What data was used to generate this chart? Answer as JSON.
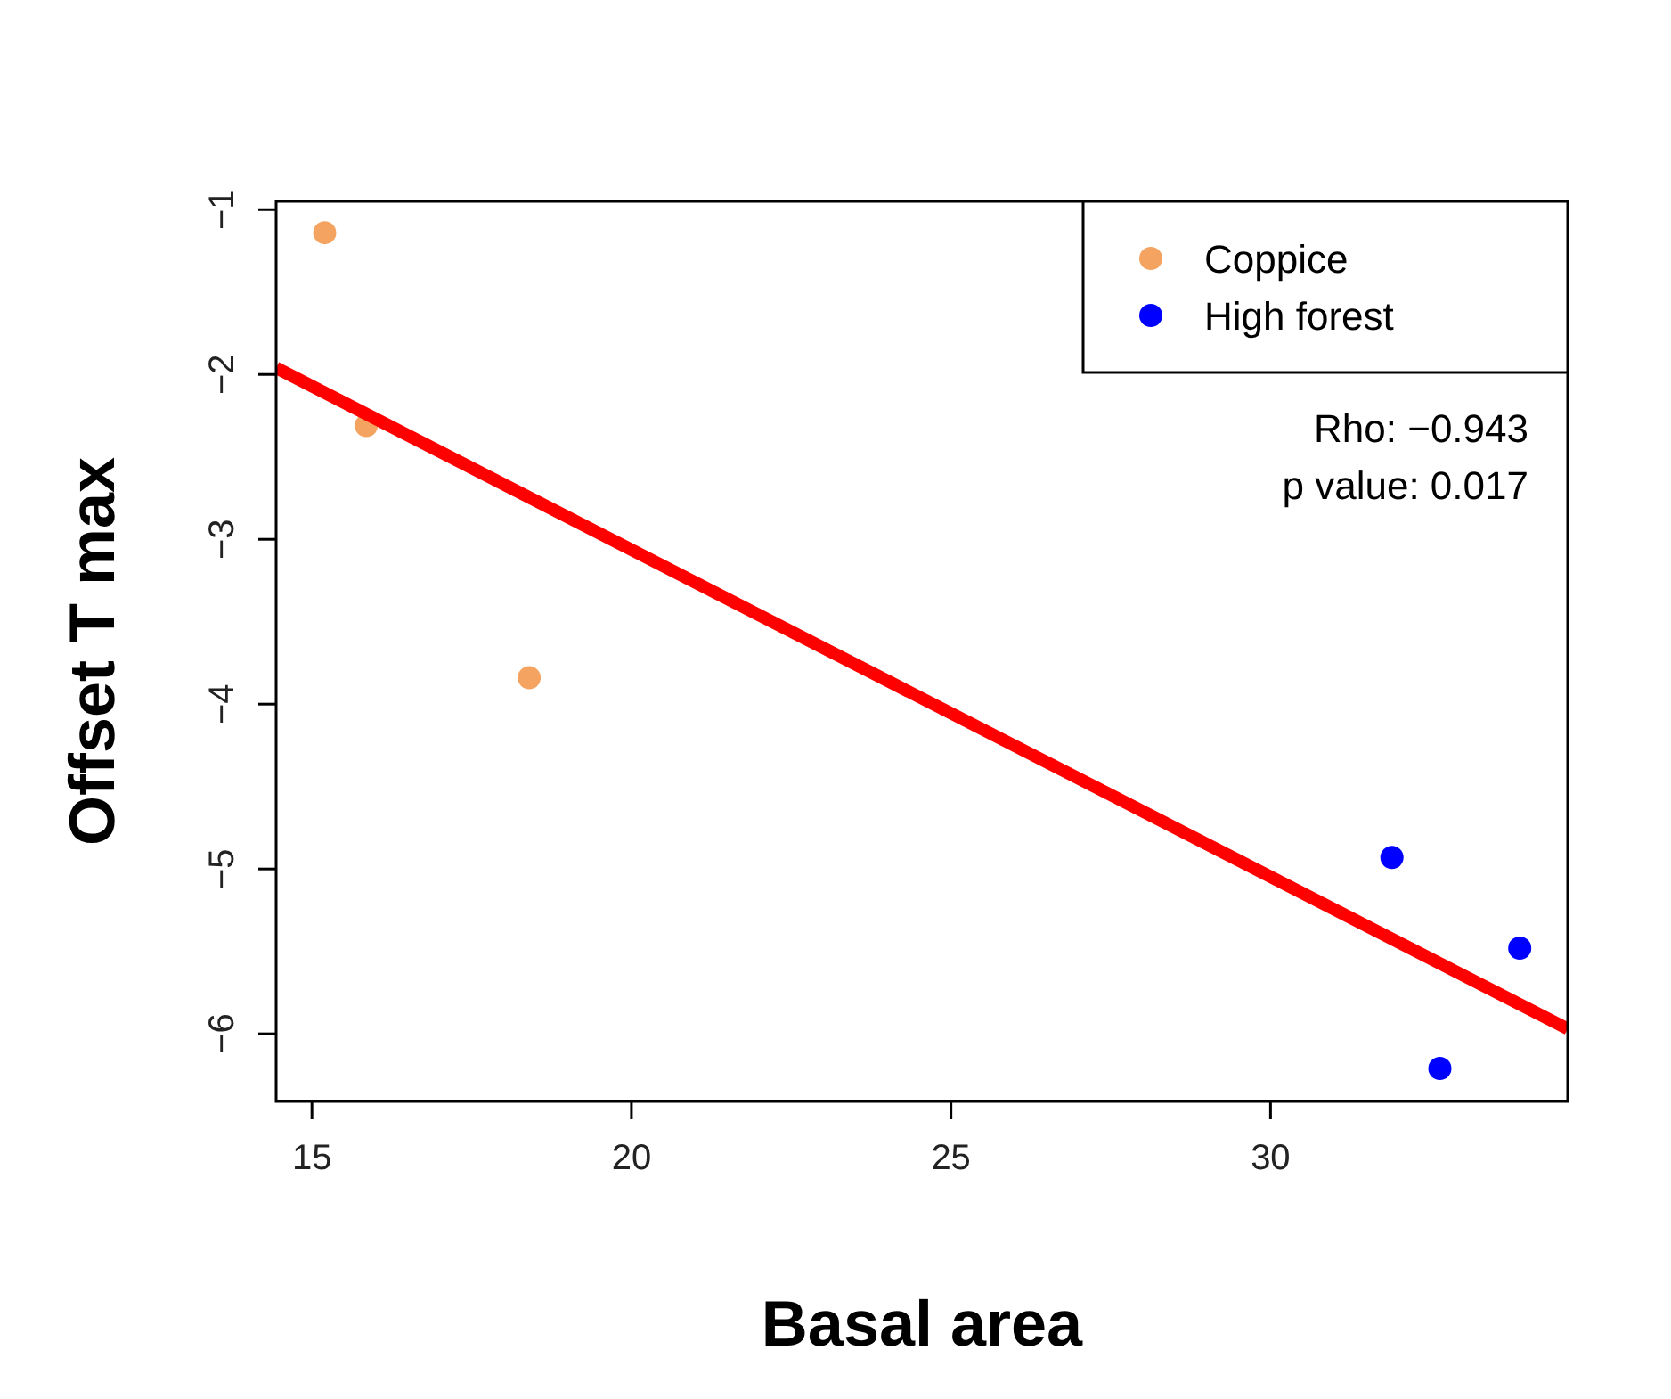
{
  "chart_data": {
    "type": "scatter",
    "xlabel": "Basal area",
    "ylabel": "Offset T max",
    "xlim": [
      14.44,
      34.65
    ],
    "ylim": [
      -6.41,
      -0.95
    ],
    "xticks": [
      15,
      20,
      25,
      30
    ],
    "yticks": [
      -1,
      -2,
      -3,
      -4,
      -5,
      -6
    ],
    "series": [
      {
        "name": "Coppice",
        "marker": "circle",
        "color": "#f4a460",
        "x": [
          15.2,
          15.85,
          18.4
        ],
        "values": [
          -1.14,
          -2.31,
          -3.84
        ]
      },
      {
        "name": "High forest",
        "marker": "circle",
        "color": "#0000ff",
        "x": [
          31.9,
          32.65,
          33.9
        ],
        "values": [
          -4.93,
          -6.21,
          -5.48
        ]
      },
      {
        "type": "line",
        "marker": "none",
        "color": "#ff0000",
        "x": [
          14.44,
          34.65
        ],
        "values": [
          -1.96,
          -5.97
        ]
      }
    ],
    "annotations": [
      "Rho: −0.943",
      "p value: 0.017"
    ],
    "legend": "top right",
    "grid": false
  }
}
